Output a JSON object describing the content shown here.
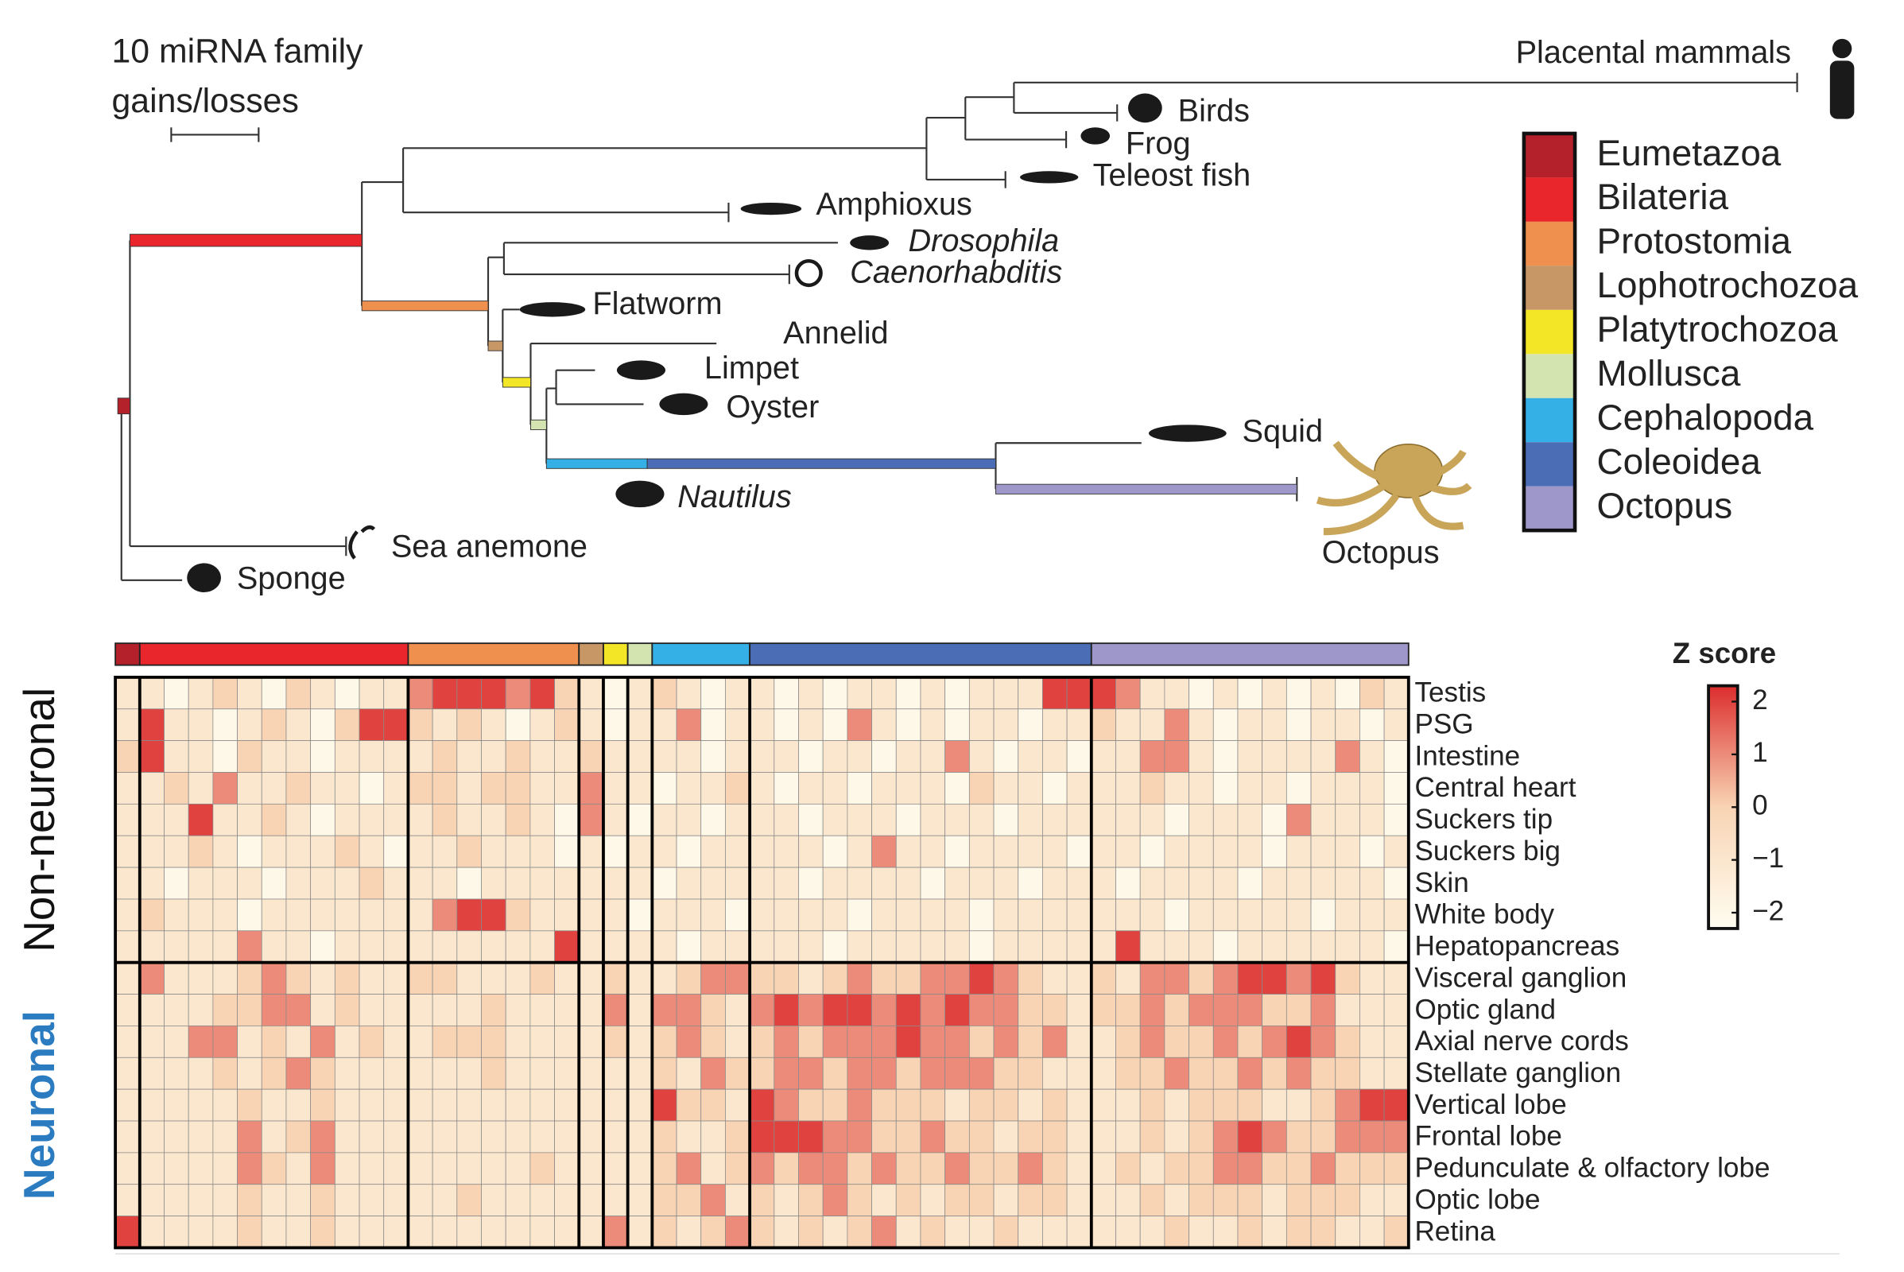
{
  "tree": {
    "scale_label": [
      "10 miRNA family",
      "gains/losses"
    ],
    "taxa": [
      {
        "label": "Placental mammals"
      },
      {
        "label": "Birds"
      },
      {
        "label": "Frog"
      },
      {
        "label": "Teleost fish"
      },
      {
        "label": "Amphioxus"
      },
      {
        "label": "Drosophila",
        "italic": true
      },
      {
        "label": "Caenorhabditis",
        "italic": true
      },
      {
        "label": "Flatworm"
      },
      {
        "label": "Annelid"
      },
      {
        "label": "Limpet"
      },
      {
        "label": "Oyster"
      },
      {
        "label": "Squid"
      },
      {
        "label": "Nautilus",
        "italic": true
      },
      {
        "label": "Octopus"
      },
      {
        "label": "Sea anemone"
      },
      {
        "label": "Sponge"
      }
    ]
  },
  "legend": [
    {
      "name": "Eumetazoa",
      "color": "#b5212a"
    },
    {
      "name": "Bilateria",
      "color": "#e8262b"
    },
    {
      "name": "Protostomia",
      "color": "#f0904f"
    },
    {
      "name": "Lophotrochozoa",
      "color": "#c79866"
    },
    {
      "name": "Platytrochozoa",
      "color": "#f2e626"
    },
    {
      "name": "Mollusca",
      "color": "#d4e4b1"
    },
    {
      "name": "Cephalopoda",
      "color": "#34b0e6"
    },
    {
      "name": "Coleoidea",
      "color": "#4a6db5"
    },
    {
      "name": "Octopus",
      "color": "#9e97c9"
    }
  ],
  "chart_data": {
    "type": "heatmap",
    "colorbar_title": "Z score",
    "zlim": [
      -2.3,
      2.3
    ],
    "zticks": [
      2,
      1,
      0,
      {
        "value": -1,
        "label": "−1"
      },
      {
        "value": -2,
        "label": "−2"
      }
    ],
    "row_groups": [
      {
        "name": "Non-neuronal",
        "color": "#111111",
        "rows": 9
      },
      {
        "name": "Neuronal",
        "color": "#2a7bbf",
        "rows": 9
      }
    ],
    "rows": [
      "Testis",
      "PSG",
      "Intestine",
      "Central heart",
      "Suckers tip",
      "Suckers big",
      "Skin",
      "White body",
      "Hepatopancreas",
      "Visceral ganglion",
      "Optic gland",
      "Axial nerve cords",
      "Stellate ganglion",
      "Vertical lobe",
      "Frontal lobe",
      "Pedunculate & olfactory lobe",
      "Optic lobe",
      "Retina"
    ],
    "column_clades": [
      "Eumetazoa",
      "Bilateria",
      "Bilateria",
      "Bilateria",
      "Bilateria",
      "Bilateria",
      "Bilateria",
      "Bilateria",
      "Bilateria",
      "Bilateria",
      "Bilateria",
      "Bilateria",
      "Protostomia",
      "Protostomia",
      "Protostomia",
      "Protostomia",
      "Protostomia",
      "Protostomia",
      "Protostomia",
      "Lophotrochozoa",
      "Platytrochozoa",
      "Mollusca",
      "Cephalopoda",
      "Cephalopoda",
      "Cephalopoda",
      "Cephalopoda",
      "Coleoidea",
      "Coleoidea",
      "Coleoidea",
      "Coleoidea",
      "Coleoidea",
      "Coleoidea",
      "Coleoidea",
      "Coleoidea",
      "Coleoidea",
      "Coleoidea",
      "Coleoidea",
      "Coleoidea",
      "Coleoidea",
      "Coleoidea",
      "Octopus",
      "Octopus",
      "Octopus",
      "Octopus",
      "Octopus",
      "Octopus",
      "Octopus",
      "Octopus",
      "Octopus",
      "Octopus",
      "Octopus",
      "Octopus",
      "Octopus"
    ],
    "values": [
      [
        -1,
        -1,
        -2,
        -1,
        0,
        -1,
        -2,
        0,
        -1,
        -2,
        -1,
        -1,
        1,
        2,
        2,
        2,
        1,
        2,
        0,
        -1,
        -2,
        -1,
        0,
        -1,
        -2,
        -1,
        -1,
        -2,
        -1,
        -2,
        -1,
        -1,
        -2,
        -1,
        -2,
        -1,
        -1,
        -1,
        2,
        2,
        2,
        1,
        -1,
        -1,
        -2,
        -1,
        -2,
        -1,
        -2,
        -1,
        -2,
        0,
        -1
      ],
      [
        -1,
        2,
        -1,
        -1,
        -2,
        -1,
        0,
        -1,
        -2,
        0,
        2,
        2,
        0,
        -1,
        0,
        -1,
        -2,
        -1,
        0,
        -1,
        -2,
        -1,
        -1,
        1,
        -2,
        -1,
        -1,
        -2,
        -1,
        -2,
        1,
        -1,
        -2,
        -1,
        -2,
        -1,
        -1,
        -2,
        -1,
        -1,
        0,
        -1,
        -1,
        1,
        -1,
        -2,
        -1,
        -1,
        -2,
        -1,
        -1,
        -2,
        -1
      ],
      [
        0,
        2,
        -1,
        -1,
        -2,
        0,
        -1,
        -1,
        -2,
        -1,
        -1,
        -1,
        -1,
        0,
        -1,
        -1,
        0,
        -1,
        -1,
        0,
        -1,
        -1,
        -1,
        -1,
        -2,
        -1,
        -1,
        -1,
        -2,
        -1,
        -1,
        -2,
        -1,
        -1,
        1,
        -1,
        -2,
        -1,
        -1,
        -2,
        -1,
        -1,
        1,
        1,
        -1,
        -2,
        -1,
        -1,
        -1,
        -1,
        1,
        -1,
        -2
      ],
      [
        -1,
        -1,
        0,
        -1,
        1,
        -1,
        -1,
        0,
        -1,
        -1,
        -2,
        -1,
        0,
        0,
        -1,
        0,
        0,
        -1,
        -1,
        1,
        -1,
        -1,
        -2,
        -1,
        -1,
        0,
        -1,
        -2,
        -1,
        -1,
        -2,
        -1,
        -1,
        -1,
        -2,
        0,
        -1,
        -1,
        -2,
        -1,
        -1,
        -1,
        0,
        -1,
        -1,
        -2,
        -1,
        -1,
        -2,
        -1,
        -1,
        -1,
        -2
      ],
      [
        -1,
        -1,
        -1,
        2,
        -1,
        -1,
        0,
        -1,
        -2,
        -1,
        -1,
        -1,
        -1,
        0,
        -1,
        -1,
        0,
        -1,
        -2,
        1,
        -1,
        -2,
        -1,
        -1,
        -2,
        -1,
        -1,
        -1,
        -2,
        -1,
        -1,
        -1,
        -2,
        -1,
        -1,
        -1,
        -2,
        -1,
        -1,
        -1,
        -1,
        -1,
        -1,
        -2,
        -1,
        -1,
        -1,
        -2,
        1,
        -1,
        -1,
        -1,
        -2
      ],
      [
        -1,
        -1,
        -1,
        0,
        -1,
        -2,
        -1,
        -1,
        -1,
        0,
        -1,
        -2,
        -1,
        -1,
        0,
        -1,
        -1,
        -1,
        -2,
        -1,
        -2,
        -1,
        -1,
        -2,
        -1,
        -1,
        -1,
        -1,
        -1,
        -2,
        -1,
        1,
        -1,
        -1,
        -2,
        -1,
        -1,
        -1,
        -1,
        -2,
        -1,
        -1,
        -2,
        -1,
        -1,
        -1,
        -1,
        -2,
        -1,
        -1,
        -1,
        -2,
        -1
      ],
      [
        -1,
        -1,
        -2,
        -1,
        -1,
        -1,
        -2,
        -1,
        -1,
        -1,
        0,
        -1,
        -1,
        -1,
        -2,
        -1,
        -1,
        -1,
        -1,
        -1,
        -1,
        -1,
        -2,
        -1,
        -1,
        -1,
        -1,
        -1,
        -2,
        -1,
        -1,
        -1,
        -1,
        -2,
        -1,
        -1,
        -1,
        -2,
        -1,
        -1,
        -1,
        -2,
        -1,
        -1,
        -1,
        -1,
        -2,
        -1,
        -1,
        -1,
        -1,
        -1,
        -2
      ],
      [
        -1,
        0,
        -1,
        -1,
        -1,
        -2,
        -1,
        -1,
        -1,
        -1,
        -1,
        -1,
        -1,
        1,
        2,
        2,
        0,
        -1,
        -1,
        -1,
        -1,
        -2,
        -1,
        -1,
        -1,
        -2,
        -1,
        -1,
        -1,
        -1,
        -2,
        -1,
        -1,
        -1,
        -1,
        -2,
        -1,
        -1,
        -1,
        -1,
        -1,
        -1,
        -1,
        -2,
        -1,
        -1,
        -1,
        -1,
        -1,
        -2,
        -1,
        -1,
        -1
      ],
      [
        -1,
        -1,
        -1,
        -1,
        -1,
        1,
        -1,
        -1,
        -2,
        -1,
        -1,
        -1,
        -1,
        -1,
        -1,
        -1,
        -1,
        -1,
        2,
        -1,
        -1,
        -1,
        -1,
        -2,
        -1,
        -1,
        -1,
        -1,
        -1,
        -2,
        -1,
        -1,
        -1,
        -1,
        -1,
        -2,
        -1,
        -1,
        -1,
        -1,
        -1,
        2,
        -1,
        -1,
        -1,
        -2,
        -1,
        -1,
        -1,
        -1,
        -1,
        -1,
        -2
      ],
      [
        -1,
        1,
        -1,
        -1,
        -1,
        0,
        1,
        0,
        -1,
        0,
        -1,
        -1,
        0,
        0,
        -1,
        -1,
        -1,
        0,
        -1,
        -1,
        0,
        -1,
        -1,
        0,
        1,
        1,
        0,
        0,
        -1,
        0,
        1,
        0,
        0,
        1,
        1,
        2,
        1,
        0,
        -1,
        -1,
        0,
        -1,
        1,
        1,
        0,
        1,
        2,
        2,
        1,
        2,
        0,
        -1,
        -1
      ],
      [
        -1,
        -1,
        -1,
        -1,
        0,
        0,
        1,
        1,
        -1,
        0,
        -1,
        -1,
        -1,
        -1,
        -1,
        0,
        -1,
        -1,
        -1,
        -1,
        1,
        -1,
        1,
        1,
        0,
        -1,
        1,
        2,
        1,
        2,
        2,
        1,
        2,
        1,
        2,
        1,
        1,
        0,
        0,
        -1,
        0,
        0,
        1,
        0,
        1,
        1,
        1,
        0,
        0,
        1,
        -1,
        -1,
        -1
      ],
      [
        -1,
        -1,
        -1,
        1,
        1,
        -1,
        0,
        -1,
        1,
        -1,
        0,
        -1,
        -1,
        0,
        0,
        0,
        -1,
        -1,
        -1,
        -1,
        0,
        -1,
        0,
        1,
        0,
        -1,
        0,
        1,
        0,
        1,
        1,
        1,
        2,
        1,
        1,
        0,
        1,
        0,
        1,
        -1,
        -1,
        0,
        1,
        0,
        0,
        1,
        0,
        1,
        2,
        1,
        0,
        -1,
        -1
      ],
      [
        -1,
        -1,
        -1,
        -1,
        0,
        -1,
        0,
        1,
        0,
        -1,
        -1,
        -1,
        -1,
        -1,
        -1,
        0,
        -1,
        -1,
        -1,
        -1,
        -1,
        -1,
        0,
        -1,
        1,
        0,
        0,
        1,
        1,
        0,
        1,
        1,
        0,
        1,
        1,
        1,
        0,
        0,
        -1,
        -1,
        -1,
        0,
        0,
        1,
        0,
        0,
        1,
        0,
        1,
        0,
        0,
        -1,
        -1
      ],
      [
        -1,
        -1,
        -1,
        -1,
        -1,
        0,
        -1,
        -1,
        0,
        -1,
        -1,
        -1,
        -1,
        -1,
        -1,
        -1,
        -1,
        -1,
        -1,
        -1,
        -1,
        -1,
        2,
        0,
        0,
        -1,
        2,
        1,
        0,
        0,
        1,
        0,
        0,
        0,
        -1,
        0,
        0,
        -1,
        0,
        -1,
        -1,
        -1,
        0,
        -1,
        0,
        0,
        0,
        -1,
        -1,
        0,
        1,
        2,
        2
      ],
      [
        -1,
        -1,
        -1,
        -1,
        -1,
        1,
        -1,
        0,
        1,
        -1,
        -1,
        -1,
        -1,
        -1,
        -1,
        -1,
        -1,
        -1,
        -1,
        -1,
        -1,
        -1,
        0,
        -1,
        -1,
        0,
        2,
        2,
        2,
        1,
        1,
        0,
        0,
        1,
        0,
        0,
        -1,
        0,
        0,
        -1,
        -1,
        -1,
        0,
        -1,
        0,
        1,
        2,
        1,
        0,
        0,
        1,
        1,
        1
      ],
      [
        -1,
        -1,
        -1,
        -1,
        -1,
        1,
        0,
        -1,
        1,
        -1,
        -1,
        -1,
        -1,
        -1,
        -1,
        -1,
        -1,
        0,
        -1,
        -1,
        -1,
        -1,
        0,
        1,
        -1,
        0,
        1,
        0,
        1,
        1,
        0,
        1,
        0,
        0,
        1,
        0,
        0,
        1,
        0,
        -1,
        -1,
        0,
        -1,
        0,
        0,
        1,
        1,
        0,
        0,
        1,
        0,
        0,
        0
      ],
      [
        -1,
        -1,
        -1,
        -1,
        -1,
        0,
        -1,
        -1,
        0,
        -1,
        -1,
        -1,
        -1,
        -1,
        0,
        -1,
        -1,
        -1,
        -1,
        -1,
        -1,
        -1,
        0,
        0,
        1,
        -1,
        0,
        -1,
        0,
        1,
        0,
        -1,
        0,
        -1,
        0,
        0,
        -1,
        0,
        0,
        -1,
        -1,
        -1,
        0,
        -1,
        0,
        0,
        0,
        -1,
        0,
        0,
        0,
        -1,
        -1
      ],
      [
        2,
        -1,
        -1,
        -1,
        -1,
        0,
        -1,
        -1,
        0,
        -1,
        -1,
        -1,
        -1,
        -1,
        -1,
        -1,
        -1,
        -1,
        -1,
        -1,
        1,
        -1,
        0,
        -1,
        0,
        1,
        0,
        -1,
        0,
        -1,
        0,
        1,
        -1,
        0,
        -1,
        -1,
        0,
        -1,
        -1,
        -1,
        -1,
        -1,
        -1,
        0,
        -1,
        -1,
        0,
        -1,
        0,
        0,
        -1,
        -1,
        0
      ]
    ]
  }
}
